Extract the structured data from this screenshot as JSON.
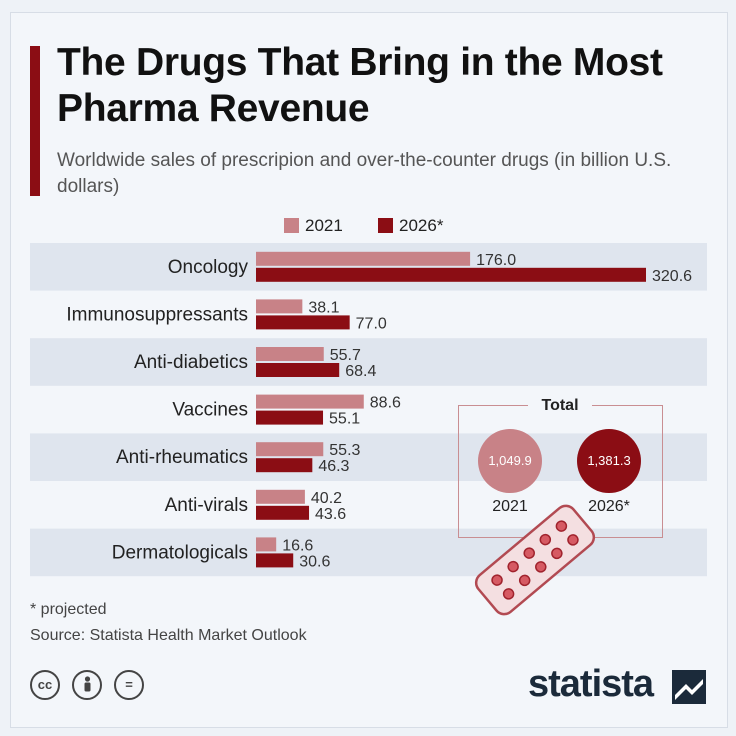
{
  "title": "The Drugs That Bring in the Most Pharma Revenue",
  "subtitle": "Worldwide sales of prescripion and over-the-counter drugs (in billion U.S. dollars)",
  "footnote": "* projected",
  "source": "Source: Statista Health Market Outlook",
  "brand": "statista",
  "icons": [
    "cc-icon",
    "person-icon",
    "equals-icon",
    "pill-blister-icon"
  ],
  "colors": {
    "y2021": "#c88287",
    "y2026": "#8b0d14",
    "accent": "#8b0d14"
  },
  "totals": {
    "label": "Total",
    "items": [
      {
        "year": "2021",
        "value": "1,049.9"
      },
      {
        "year": "2026*",
        "value": "1,381.3"
      }
    ]
  },
  "chart_data": {
    "type": "bar",
    "orientation": "horizontal",
    "categories": [
      "Oncology",
      "Immunosuppressants",
      "Anti-diabetics",
      "Vaccines",
      "Anti-rheumatics",
      "Anti-virals",
      "Dermatologicals"
    ],
    "series": [
      {
        "name": "2021",
        "values": [
          176.0,
          38.1,
          55.7,
          88.6,
          55.3,
          40.2,
          16.6
        ],
        "labels": [
          "176.0",
          "38.1",
          "55.7",
          "88.6",
          "55.3",
          "40.2",
          "16.6"
        ]
      },
      {
        "name": "2026*",
        "values": [
          320.6,
          77.0,
          68.4,
          55.1,
          46.3,
          43.6,
          30.6
        ],
        "labels": [
          "320.6",
          "77.0",
          "68.4",
          "55.1",
          "46.3",
          "43.6",
          "30.6"
        ]
      }
    ],
    "xlim": [
      0,
      320.6
    ],
    "legend": "top",
    "grid": false
  }
}
